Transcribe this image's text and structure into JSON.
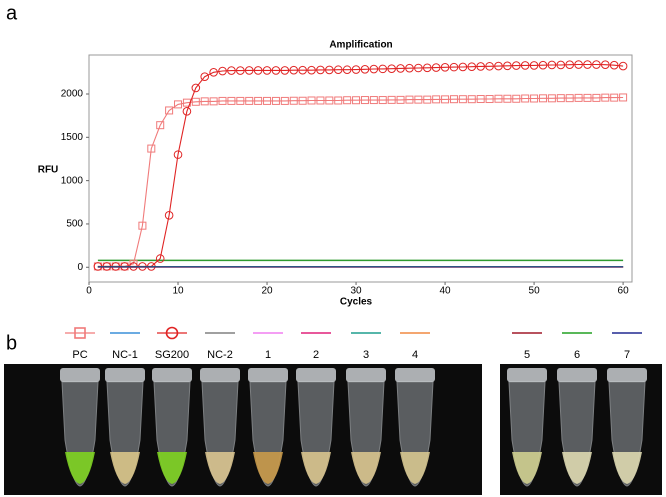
{
  "panel_labels": [
    "a",
    "b"
  ],
  "chart_data": {
    "type": "line",
    "title": "Amplification",
    "x_label": "Cycles",
    "y_label": "RFU",
    "xlim": [
      0,
      61
    ],
    "ylim": [
      -170,
      2450
    ],
    "xticks": [
      0,
      10,
      20,
      30,
      40,
      50,
      60
    ],
    "yticks": [
      0,
      500,
      1000,
      1500,
      2000
    ],
    "threshold_line": {
      "value": 80,
      "color": "#2e9a2e"
    },
    "series": [
      {
        "name": "PC",
        "color": "#f07a7a",
        "marker": "square",
        "x": [
          1,
          2,
          3,
          4,
          5,
          6,
          7,
          8,
          9,
          10,
          11,
          12,
          13,
          14,
          15,
          16,
          17,
          18,
          19,
          20,
          21,
          22,
          23,
          24,
          25,
          26,
          27,
          28,
          29,
          30,
          31,
          32,
          33,
          34,
          35,
          36,
          37,
          38,
          39,
          40,
          41,
          42,
          43,
          44,
          45,
          46,
          47,
          48,
          49,
          50,
          51,
          52,
          53,
          54,
          55,
          56,
          57,
          58,
          59,
          60
        ],
        "values": [
          10,
          10,
          10,
          10,
          40,
          480,
          1370,
          1640,
          1810,
          1880,
          1900,
          1910,
          1915,
          1915,
          1920,
          1920,
          1920,
          1920,
          1920,
          1920,
          1920,
          1920,
          1922,
          1922,
          1925,
          1925,
          1925,
          1925,
          1928,
          1928,
          1930,
          1930,
          1930,
          1932,
          1932,
          1935,
          1935,
          1935,
          1938,
          1938,
          1940,
          1940,
          1940,
          1942,
          1942,
          1945,
          1945,
          1945,
          1948,
          1948,
          1950,
          1950,
          1952,
          1952,
          1955,
          1955,
          1955,
          1958,
          1958,
          1960
        ]
      },
      {
        "name": "NC-1",
        "color": "#3a8fd8",
        "marker": "none",
        "x": [
          1,
          60
        ],
        "values": [
          5,
          5
        ]
      },
      {
        "name": "SG200",
        "color": "#e02424",
        "marker": "circle",
        "x": [
          1,
          2,
          3,
          4,
          5,
          6,
          7,
          8,
          9,
          10,
          11,
          12,
          13,
          14,
          15,
          16,
          17,
          18,
          19,
          20,
          21,
          22,
          23,
          24,
          25,
          26,
          27,
          28,
          29,
          30,
          31,
          32,
          33,
          34,
          35,
          36,
          37,
          38,
          39,
          40,
          41,
          42,
          43,
          44,
          45,
          46,
          47,
          48,
          49,
          50,
          51,
          52,
          53,
          54,
          55,
          56,
          57,
          58,
          59,
          60
        ],
        "values": [
          10,
          10,
          10,
          10,
          10,
          10,
          10,
          100,
          600,
          1300,
          1800,
          2070,
          2200,
          2250,
          2265,
          2270,
          2270,
          2272,
          2272,
          2272,
          2272,
          2272,
          2275,
          2275,
          2275,
          2278,
          2278,
          2280,
          2280,
          2282,
          2285,
          2288,
          2290,
          2292,
          2295,
          2298,
          2300,
          2302,
          2305,
          2308,
          2310,
          2312,
          2315,
          2318,
          2320,
          2322,
          2325,
          2328,
          2330,
          2330,
          2332,
          2335,
          2335,
          2338,
          2340,
          2340,
          2340,
          2338,
          2332,
          2322
        ]
      },
      {
        "name": "NC-2",
        "color": "#808080",
        "marker": "none",
        "x": [
          1,
          60
        ],
        "values": [
          3,
          3
        ]
      },
      {
        "name": "1",
        "color": "#f07ef0",
        "marker": "none",
        "x": [
          1,
          60
        ],
        "values": [
          4,
          4
        ]
      },
      {
        "name": "2",
        "color": "#e0207a",
        "marker": "none",
        "x": [
          1,
          60
        ],
        "values": [
          2,
          2
        ]
      },
      {
        "name": "3",
        "color": "#1f9e8e",
        "marker": "none",
        "x": [
          1,
          60
        ],
        "values": [
          6,
          6
        ]
      },
      {
        "name": "4",
        "color": "#f08840",
        "marker": "none",
        "x": [
          1,
          60
        ],
        "values": [
          3,
          3
        ]
      },
      {
        "name": "5",
        "color": "#a01828",
        "marker": "none",
        "x": [
          1,
          60
        ],
        "values": [
          2,
          2
        ]
      },
      {
        "name": "6",
        "color": "#22a022",
        "marker": "none",
        "x": [
          1,
          60
        ],
        "values": [
          5,
          5
        ]
      },
      {
        "name": "7",
        "color": "#202890",
        "marker": "none",
        "x": [
          1,
          60
        ],
        "values": [
          4,
          4
        ]
      }
    ]
  }
}
